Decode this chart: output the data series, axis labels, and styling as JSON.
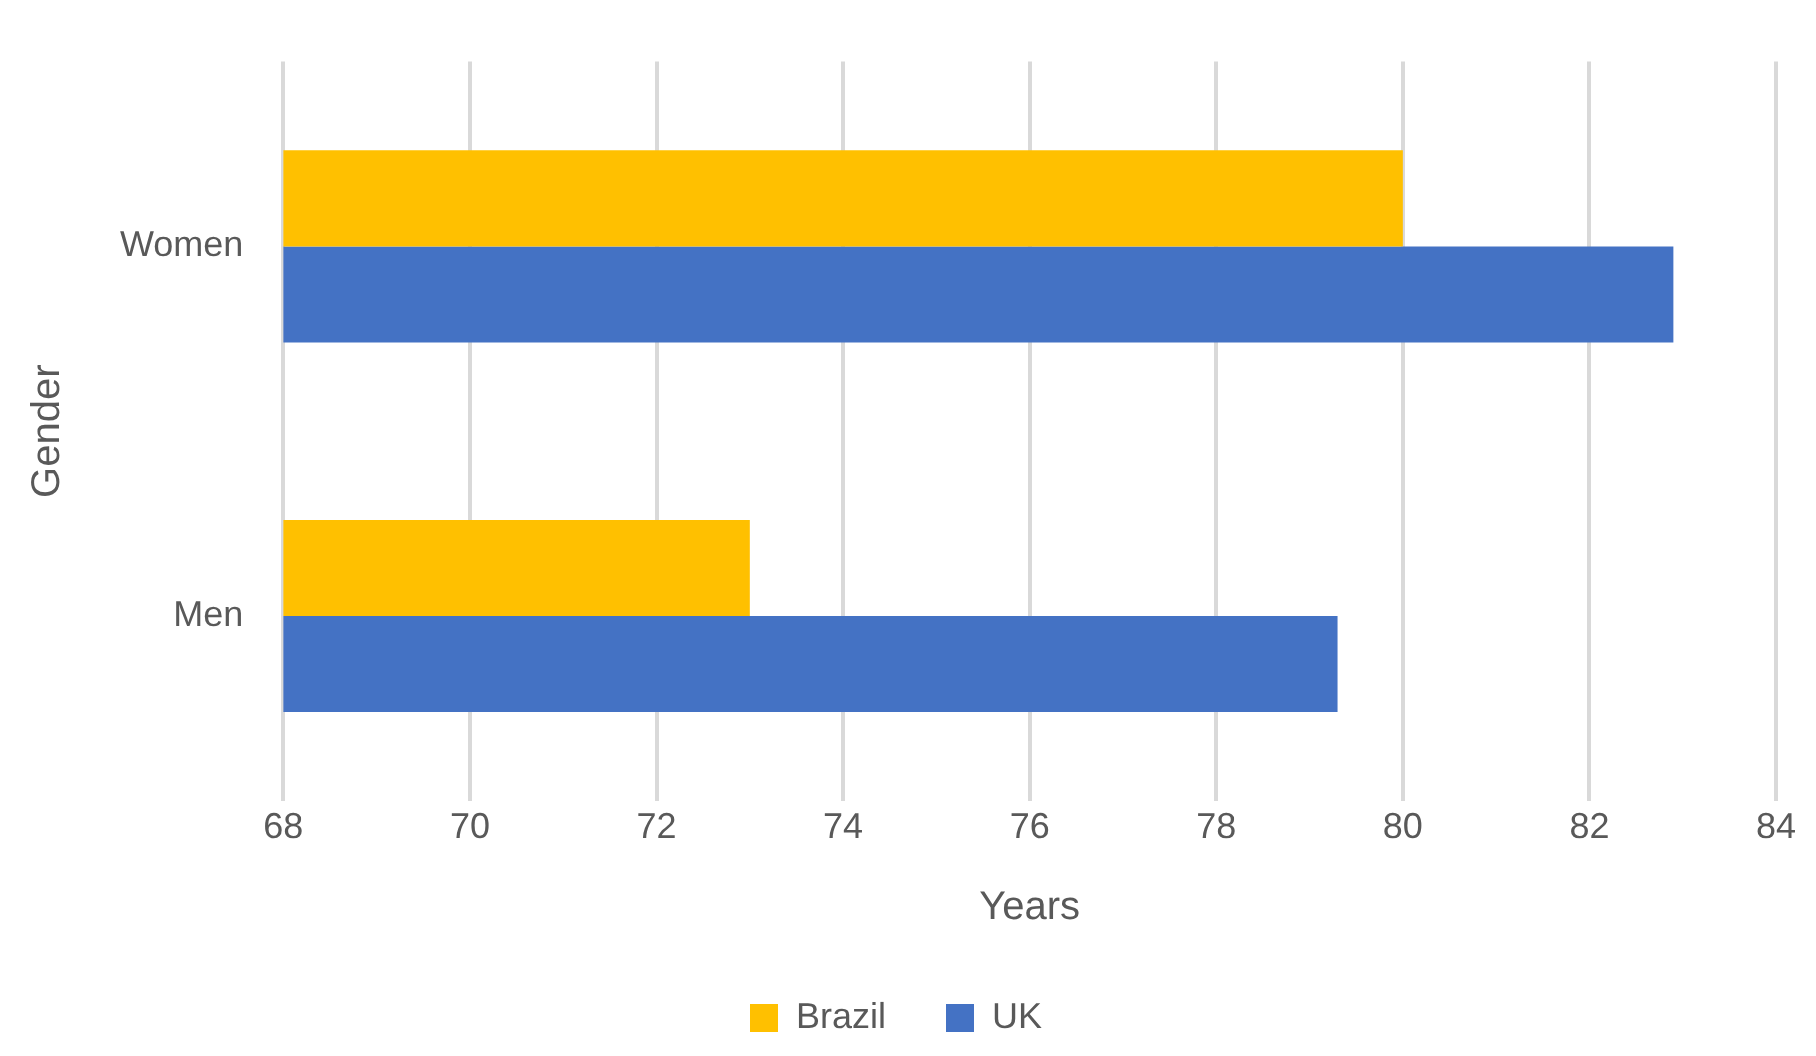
{
  "chart_data": {
    "type": "bar",
    "orientation": "horizontal",
    "xlabel": "Years",
    "ylabel": "Gender",
    "categories": [
      "Women",
      "Men"
    ],
    "series": [
      {
        "name": "Brazil",
        "color": "#ffc000",
        "values": [
          80,
          73
        ]
      },
      {
        "name": "UK",
        "color": "#4472c4",
        "values": [
          82.9,
          79.3
        ]
      }
    ],
    "xlim": [
      68,
      84
    ],
    "xticks": [
      68,
      70,
      72,
      74,
      76,
      78,
      80,
      82,
      84
    ],
    "grid": "x",
    "legend": "bottom"
  }
}
